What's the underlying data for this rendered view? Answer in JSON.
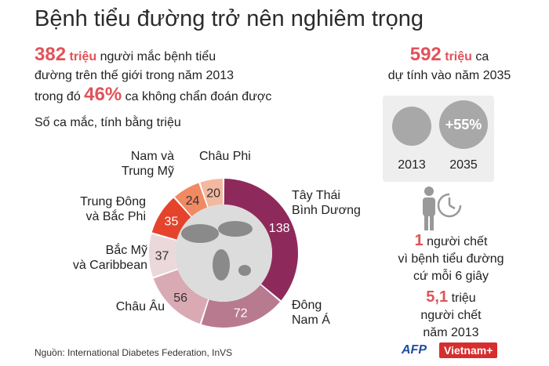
{
  "title": "Bệnh tiểu đường trở nên nghiêm trọng",
  "stats": {
    "current_value": "382",
    "current_unit": "triệu",
    "current_text_1": "người mắc bệnh tiểu",
    "current_text_2": "đường trên thế giới trong năm 2013",
    "undiagnosed_prefix": "trong đó",
    "undiagnosed_pct": "46%",
    "undiagnosed_text": "ca không chẩn đoán được"
  },
  "projection": {
    "value": "592",
    "unit": "triệu",
    "text_1": "ca",
    "text_2": "dự tính vào năm 2035",
    "increase": "+55%",
    "year_a": "2013",
    "year_b": "2035"
  },
  "deaths": {
    "every_count": "1",
    "every_text_1": "người chết",
    "every_text_2": "vì bệnh tiểu đường",
    "every_text_3": "cứ mỗi 6 giây",
    "total_value": "5,1",
    "total_unit": "triệu",
    "total_text_1": "người chết",
    "total_text_2": "năm 2013"
  },
  "chart_data": {
    "type": "pie",
    "title": "Số ca mắc, tính bằng triệu",
    "categories": [
      "Tây Thái Bình Dương",
      "Đông Nam Á",
      "Châu Âu",
      "Bắc Mỹ và Caribbean",
      "Trung Đông và Bắc Phi",
      "Nam và Trung Mỹ",
      "Châu Phi"
    ],
    "category_lines": [
      [
        "Tây Thái",
        "Bình Dương"
      ],
      [
        "Đông",
        "Nam Á"
      ],
      [
        "Châu Âu"
      ],
      [
        "Bắc Mỹ",
        "và Caribbean"
      ],
      [
        "Trung Đông",
        "và Bắc Phi"
      ],
      [
        "Nam và",
        "Trung Mỹ"
      ],
      [
        "Châu Phi"
      ]
    ],
    "values": [
      138,
      72,
      56,
      37,
      35,
      24,
      20
    ],
    "colors": [
      "#8e2a5b",
      "#b87a8f",
      "#d9a9b4",
      "#ead8da",
      "#e5432c",
      "#f08a62",
      "#f3b9a0"
    ],
    "value_text_colors": [
      "#ffffff",
      "#ffffff",
      "#333333",
      "#333333",
      "#ffffff",
      "#333333",
      "#333333"
    ]
  },
  "icons": {
    "globe": "globe-icon",
    "person": "person-icon",
    "clock": "clock-icon"
  },
  "source": "Nguồn: International Diabetes Federation, InVS",
  "logo": {
    "afp": "AFP",
    "vietnam": "Vietnam+"
  }
}
